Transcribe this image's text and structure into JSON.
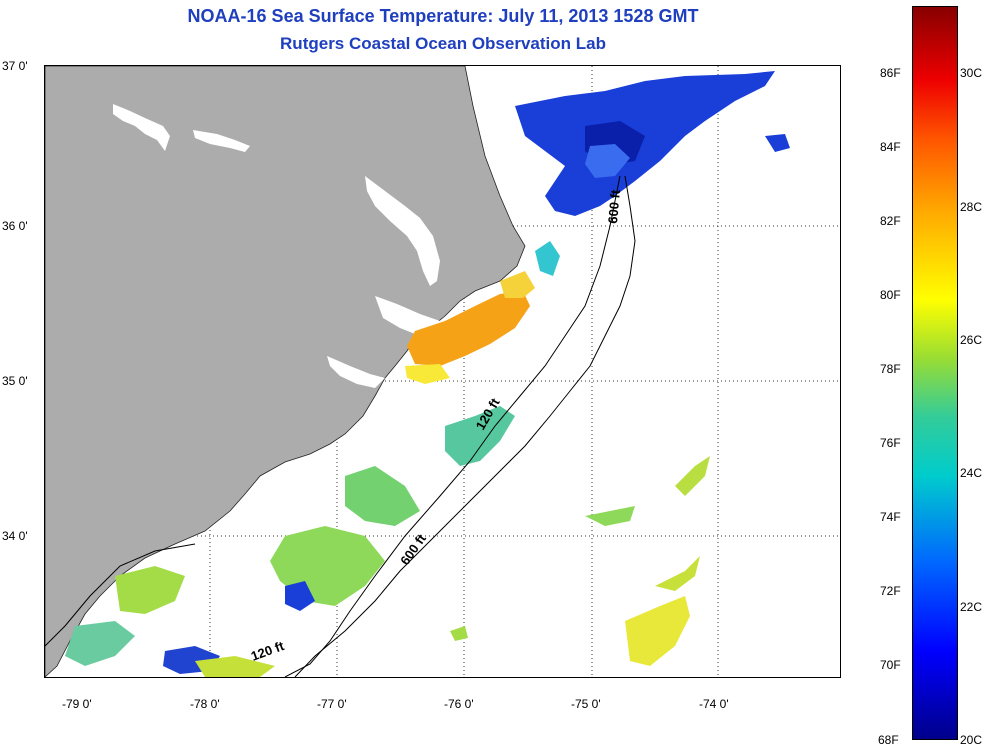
{
  "header": {
    "title": "NOAA-16 Sea Surface Temperature:  July 11, 2013 1528 GMT",
    "subtitle": "Rutgers Coastal Ocean Observation Lab"
  },
  "map": {
    "lat_labels": [
      "37 0'",
      "36 0'",
      "35 0'",
      "34 0'"
    ],
    "lon_labels": [
      "-79 0'",
      "-78 0'",
      "-77 0'",
      "-76 0'",
      "-75 0'",
      "-74 0'"
    ],
    "contour_labels": [
      "600 ft",
      "120 ft",
      "600 ft",
      "120 ft"
    ]
  },
  "colorbar": {
    "fahrenheit_labels": [
      "86F",
      "84F",
      "82F",
      "80F",
      "78F",
      "76F",
      "74F",
      "72F",
      "70F",
      "68F"
    ],
    "celsius_labels": [
      "30C",
      "28C",
      "26C",
      "24C",
      "22C",
      "20C"
    ],
    "colors": {
      "min": "#00008b",
      "blue": "#0000ff",
      "cyan": "#00cccc",
      "green": "#66cc66",
      "yellow": "#ffff00",
      "orange": "#ffaa00",
      "red": "#ee0000",
      "max": "#880000"
    }
  },
  "colors": {
    "land": "#acacac",
    "ocean": "#ffffff",
    "title": "#1f3fbf"
  }
}
